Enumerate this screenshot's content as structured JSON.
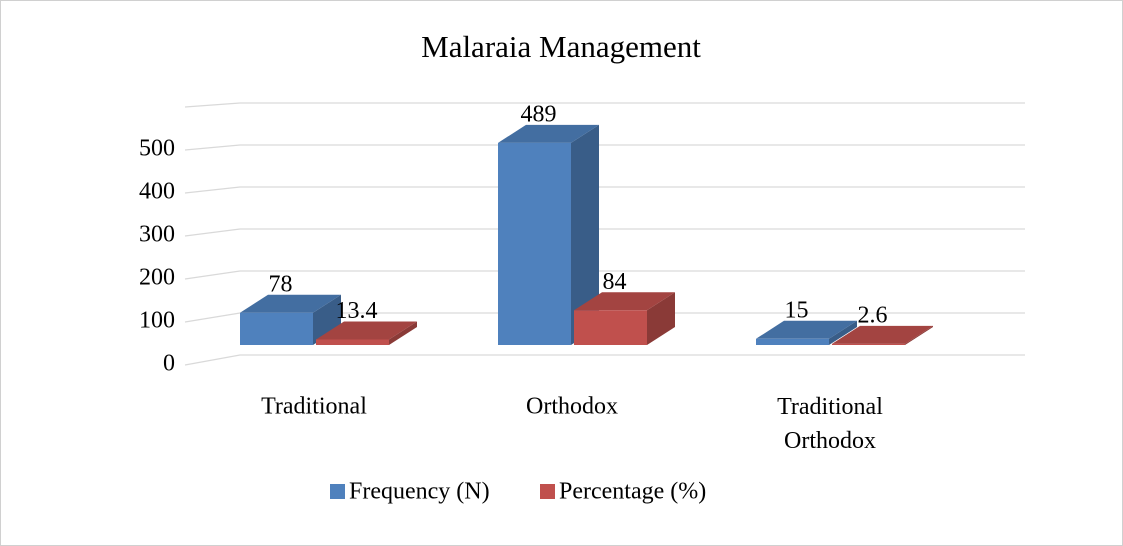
{
  "chart_data": {
    "type": "bar3d",
    "title": "Malaraia Management",
    "categories": [
      "Traditional",
      "Orthodox",
      "Traditional Orthodox"
    ],
    "series": [
      {
        "name": "Frequency (N)",
        "color": "#4f81bd",
        "values": [
          78,
          489,
          15
        ]
      },
      {
        "name": "Percentage (%)",
        "color": "#c0504d",
        "values": [
          13.4,
          84,
          2.6
        ]
      }
    ],
    "ylim": [
      0,
      600
    ],
    "yticks": [
      0,
      100,
      200,
      300,
      400,
      500
    ],
    "grid": true,
    "legend": "bottom"
  }
}
